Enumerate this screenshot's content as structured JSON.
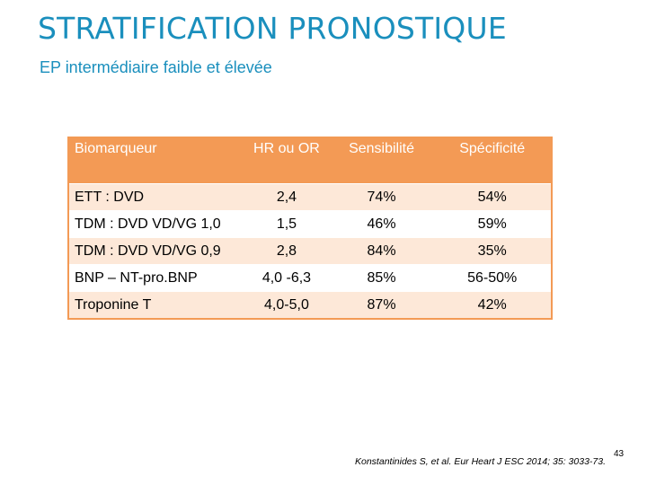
{
  "slide": {
    "title": "STRATIFICATION PRONOSTIQUE",
    "subtitle": "EP intermédiaire faible et élevée",
    "reference": "Konstantinides S, et al. Eur Heart J ESC 2014; 35: 3033-73.",
    "page_number": "43"
  },
  "table": {
    "headers": [
      "Biomarqueur",
      "HR ou OR",
      "Sensibilité",
      "Spécificité"
    ],
    "rows": [
      [
        "ETT : DVD",
        "2,4",
        "74%",
        "54%"
      ],
      [
        "TDM : DVD VD/VG 1,0",
        "1,5",
        "46%",
        "59%"
      ],
      [
        "TDM : DVD VD/VG 0,9",
        "2,8",
        "84%",
        "35%"
      ],
      [
        "BNP – NT-pro.BNP",
        "4,0 -6,3",
        "85%",
        "56-50%"
      ],
      [
        "Troponine T",
        "4,0-5,0",
        "87%",
        "42%"
      ]
    ]
  },
  "colors": {
    "title": "#1a8fbd",
    "header_bg": "#f39a55",
    "row_tint": "#fde8d8"
  }
}
